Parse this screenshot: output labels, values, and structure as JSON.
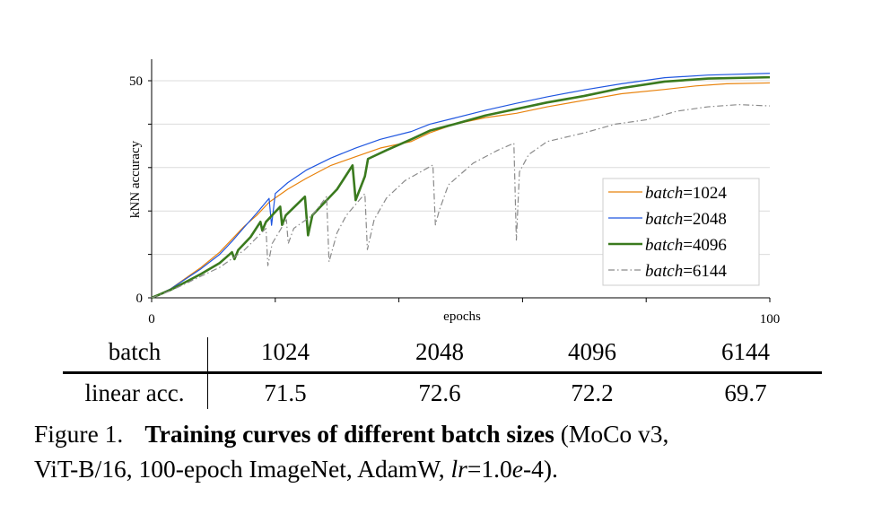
{
  "chart_data": {
    "type": "line",
    "xlabel": "epochs",
    "ylabel": "kNN accuracy",
    "xlim": [
      0,
      100
    ],
    "ylim": [
      0,
      55
    ],
    "x_tick_labels": [
      "0",
      "100"
    ],
    "x_ticks": [
      0,
      20,
      40,
      60,
      80,
      100
    ],
    "y_tick_labels": [
      "0",
      "50"
    ],
    "y_ticks": [
      0,
      10,
      20,
      30,
      40,
      50
    ],
    "grid": "horizontal",
    "legend_position": "bottom-right",
    "series": [
      {
        "name": "batch=1024",
        "label_italic": "batch",
        "label_value": "=1024",
        "color": "#e8820c",
        "style": "solid",
        "width": 1.2,
        "points": [
          [
            0,
            0
          ],
          [
            3,
            2
          ],
          [
            6,
            5
          ],
          [
            8,
            7
          ],
          [
            11,
            10.5
          ],
          [
            13,
            13.5
          ],
          [
            15,
            16.5
          ],
          [
            17,
            19
          ],
          [
            19,
            22
          ],
          [
            22,
            25
          ],
          [
            25,
            27.5
          ],
          [
            29,
            30.5
          ],
          [
            33,
            32.5
          ],
          [
            37,
            34.5
          ],
          [
            42,
            36
          ],
          [
            45,
            38
          ],
          [
            49,
            40
          ],
          [
            54,
            41.5
          ],
          [
            59,
            42.5
          ],
          [
            64,
            44
          ],
          [
            70,
            45.5
          ],
          [
            76,
            47
          ],
          [
            83,
            48
          ],
          [
            88,
            48.8
          ],
          [
            93,
            49.3
          ],
          [
            100,
            49.5
          ]
        ]
      },
      {
        "name": "batch=2048",
        "label_italic": "batch",
        "label_value": "=2048",
        "color": "#1f56e0",
        "style": "solid",
        "width": 1.2,
        "points": [
          [
            0,
            0
          ],
          [
            3,
            2
          ],
          [
            6,
            4.8
          ],
          [
            8,
            6.7
          ],
          [
            11,
            10
          ],
          [
            13,
            13
          ],
          [
            15,
            16.3
          ],
          [
            17,
            19.5
          ],
          [
            19,
            22.9
          ],
          [
            19.4,
            16.7
          ],
          [
            20,
            24
          ],
          [
            22,
            26.5
          ],
          [
            25,
            29.4
          ],
          [
            29,
            32.2
          ],
          [
            33,
            34.5
          ],
          [
            37,
            36.5
          ],
          [
            42,
            38.3
          ],
          [
            45,
            40
          ],
          [
            49,
            41.4
          ],
          [
            54,
            43.2
          ],
          [
            59,
            44.8
          ],
          [
            64,
            46.3
          ],
          [
            70,
            47.9
          ],
          [
            76,
            49.3
          ],
          [
            83,
            50.7
          ],
          [
            90,
            51.3
          ],
          [
            100,
            51.7
          ]
        ]
      },
      {
        "name": "batch=4096",
        "label_italic": "batch",
        "label_value": "=4096",
        "color": "#3a7a1e",
        "style": "solid",
        "width": 2.6,
        "points": [
          [
            0,
            0
          ],
          [
            3,
            1.8
          ],
          [
            6,
            4
          ],
          [
            8,
            5.5
          ],
          [
            11,
            8
          ],
          [
            13,
            10.5
          ],
          [
            13.4,
            8.9
          ],
          [
            14,
            11
          ],
          [
            16,
            14
          ],
          [
            17.6,
            17.5
          ],
          [
            17.9,
            15.5
          ],
          [
            18.5,
            17.5
          ],
          [
            20.8,
            21
          ],
          [
            21.1,
            16.8
          ],
          [
            21.7,
            19
          ],
          [
            24.8,
            23.3
          ],
          [
            25.3,
            14.4
          ],
          [
            26,
            19
          ],
          [
            28,
            22
          ],
          [
            30,
            25
          ],
          [
            32.5,
            30.5
          ],
          [
            33,
            22.5
          ],
          [
            34.5,
            28
          ],
          [
            35,
            32
          ],
          [
            38,
            34
          ],
          [
            42,
            36.5
          ],
          [
            45,
            38.5
          ],
          [
            49,
            40
          ],
          [
            54,
            42
          ],
          [
            59,
            43.5
          ],
          [
            64,
            45
          ],
          [
            70,
            46.5
          ],
          [
            76,
            48.3
          ],
          [
            83,
            49.8
          ],
          [
            90,
            50.5
          ],
          [
            100,
            50.8
          ]
        ]
      },
      {
        "name": "batch=6144",
        "label_italic": "batch",
        "label_value": "=6144",
        "color": "#8a8a8a",
        "style": "dashdot",
        "width": 1.2,
        "points": [
          [
            0,
            0
          ],
          [
            3,
            1.6
          ],
          [
            6,
            3.6
          ],
          [
            8,
            5
          ],
          [
            11,
            7
          ],
          [
            13,
            9
          ],
          [
            15,
            11
          ],
          [
            18.5,
            16
          ],
          [
            18.8,
            7.4
          ],
          [
            19.5,
            12.5
          ],
          [
            21.8,
            18
          ],
          [
            22.1,
            12.5
          ],
          [
            23,
            16
          ],
          [
            26,
            19
          ],
          [
            28.3,
            23.3
          ],
          [
            28.7,
            8.3
          ],
          [
            30,
            15
          ],
          [
            31.5,
            19
          ],
          [
            34.5,
            24
          ],
          [
            34.9,
            11.1
          ],
          [
            36,
            18
          ],
          [
            38,
            23
          ],
          [
            41,
            27
          ],
          [
            45.5,
            30.6
          ],
          [
            45.9,
            16.8
          ],
          [
            46.5,
            20
          ],
          [
            48,
            26
          ],
          [
            52,
            31
          ],
          [
            56,
            34
          ],
          [
            58.6,
            35.6
          ],
          [
            59,
            13.3
          ],
          [
            59.5,
            29
          ],
          [
            61,
            33
          ],
          [
            64,
            36
          ],
          [
            70,
            38
          ],
          [
            75,
            40
          ],
          [
            80,
            41
          ],
          [
            85,
            43
          ],
          [
            90,
            44
          ],
          [
            95,
            44.5
          ],
          [
            100,
            44.2
          ]
        ]
      }
    ]
  },
  "table": {
    "header": [
      "batch",
      "1024",
      "2048",
      "4096",
      "6144"
    ],
    "row": [
      "linear acc.",
      "71.5",
      "72.6",
      "72.2",
      "69.7"
    ]
  },
  "caption": {
    "label": "Figure 1.",
    "bold": "Training curves of different batch sizes",
    "rest_line1": " (MoCo v3,",
    "line2_a": "ViT-B/16, 100-epoch ImageNet, AdamW, ",
    "lr_var": "lr",
    "lr_eq": "=1.0",
    "lr_e": "e",
    "lr_end": "-4)."
  }
}
